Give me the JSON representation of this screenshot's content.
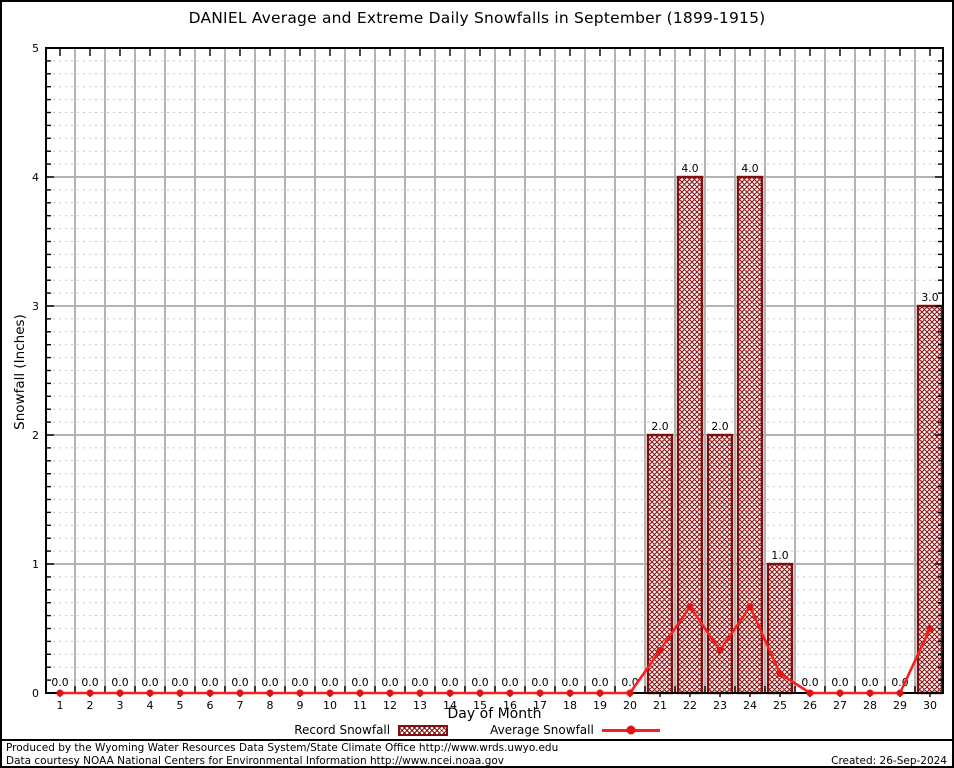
{
  "title": "DANIEL Average and Extreme Daily Snowfalls in September (1899-1915)",
  "chart_data": {
    "type": "bar",
    "title": "DANIEL Average and Extreme Daily Snowfalls in September (1899-1915)",
    "xlabel": "Day of Month",
    "ylabel": "Snowfall (Inches)",
    "ylim": [
      0,
      5
    ],
    "yticks": [
      0,
      1,
      2,
      3,
      4,
      5
    ],
    "y_minor_step": 0.1,
    "grid": true,
    "legend_position": "bottom",
    "days": [
      1,
      2,
      3,
      4,
      5,
      6,
      7,
      8,
      9,
      10,
      11,
      12,
      13,
      14,
      15,
      16,
      17,
      18,
      19,
      20,
      21,
      22,
      23,
      24,
      25,
      26,
      27,
      28,
      29,
      30
    ],
    "series": [
      {
        "name": "Record Snowfall",
        "type": "bar",
        "values": [
          0,
          0,
          0,
          0,
          0,
          0,
          0,
          0,
          0,
          0,
          0,
          0,
          0,
          0,
          0,
          0,
          0,
          0,
          0,
          0,
          2.0,
          4.0,
          2.0,
          4.0,
          1.0,
          0,
          0,
          0,
          0,
          3.0
        ]
      },
      {
        "name": "Average Snowfall",
        "type": "line",
        "values": [
          0,
          0,
          0,
          0,
          0,
          0,
          0,
          0,
          0,
          0,
          0,
          0,
          0,
          0,
          0,
          0,
          0,
          0,
          0,
          0,
          0.33,
          0.67,
          0.33,
          0.67,
          0.15,
          0,
          0,
          0,
          0,
          0.5
        ]
      }
    ],
    "colors": {
      "bar_hatch": "#8b1212",
      "bar_border": "#7f0f0f",
      "line": "#fb1c1c",
      "marker": "#e01414",
      "grid_major": "#b3b3b3",
      "grid_minor": "#c6c6c6",
      "axis": "#000000"
    }
  },
  "legend": {
    "record_label": "Record Snowfall",
    "average_label": "Average Snowfall"
  },
  "footer": {
    "line1": "Produced by the Wyoming Water Resources Data System/State Climate Office http://www.wrds.uwyo.edu",
    "line2": "Data courtesy NOAA National Centers for Environmental Information http://www.ncei.noaa.gov",
    "created": "Created: 26-Sep-2024"
  }
}
